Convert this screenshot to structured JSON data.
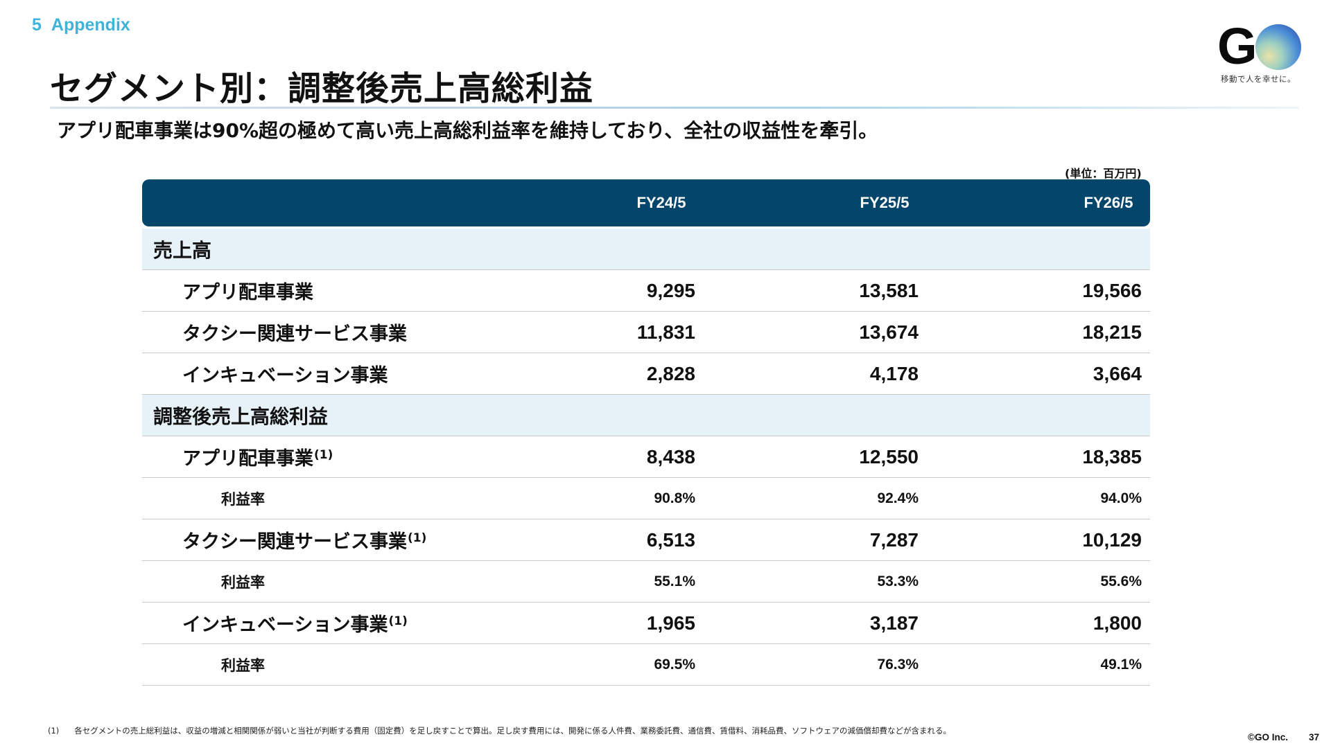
{
  "section": {
    "number": "5",
    "name": "Appendix"
  },
  "title": "セグメント別：調整後売上高総利益",
  "subtitle": "アプリ配車事業は90%超の極めて高い売上高総利益率を維持しており、全社の収益性を牽引。",
  "logo": {
    "text_g": "G",
    "tagline": "移動で人を幸せに。"
  },
  "unit": "(単位：百万円)",
  "columns": [
    "FY24/5",
    "FY25/5",
    "FY26/5"
  ],
  "rows": [
    {
      "type": "section",
      "label": "売上高"
    },
    {
      "type": "item",
      "label": "アプリ配車事業",
      "values": [
        "9,295",
        "13,581",
        "19,566"
      ]
    },
    {
      "type": "item",
      "label": "タクシー関連サービス事業",
      "values": [
        "11,831",
        "13,674",
        "18,215"
      ]
    },
    {
      "type": "item",
      "label": "インキュベーション事業",
      "values": [
        "2,828",
        "4,178",
        "3,664"
      ]
    },
    {
      "type": "section",
      "label": "調整後売上高総利益"
    },
    {
      "type": "item",
      "label": "アプリ配車事業",
      "note": "(1)",
      "values": [
        "8,438",
        "12,550",
        "18,385"
      ]
    },
    {
      "type": "margin",
      "label": "利益率",
      "values": [
        "90.8%",
        "92.4%",
        "94.0%"
      ]
    },
    {
      "type": "item",
      "label": "タクシー関連サービス事業",
      "note": "(1)",
      "values": [
        "6,513",
        "7,287",
        "10,129"
      ]
    },
    {
      "type": "margin",
      "label": "利益率",
      "values": [
        "55.1%",
        "53.3%",
        "55.6%"
      ]
    },
    {
      "type": "item",
      "label": "インキュベーション事業",
      "note": "(1)",
      "values": [
        "1,965",
        "3,187",
        "1,800"
      ]
    },
    {
      "type": "margin",
      "label": "利益率",
      "values": [
        "69.5%",
        "76.3%",
        "49.1%"
      ]
    }
  ],
  "footnote": {
    "mark": "(1)",
    "text": "各セグメントの売上総利益は、収益の増減と相関関係が弱いと当社が判断する費用（固定費）を足し戻すことで算出。足し戻す費用には、開発に係る人件費、業務委託費、通信費、賃借料、消耗品費、ソフトウェアの減価償却費などが含まれる。"
  },
  "copyright": "©GO Inc.",
  "page_number": "37"
}
